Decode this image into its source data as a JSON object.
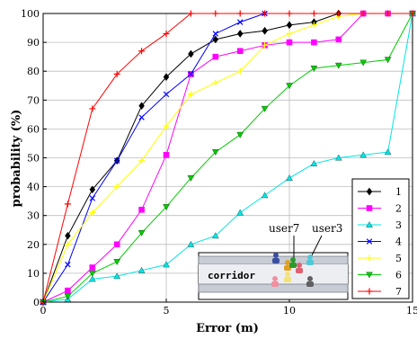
{
  "chart_data": {
    "type": "line",
    "title": "",
    "xlabel": "Error (m)",
    "ylabel": "probability (%)",
    "xlim": [
      0,
      15
    ],
    "ylim": [
      0,
      100
    ],
    "xticks": [
      0,
      5,
      10,
      15
    ],
    "yticks": [
      0,
      10,
      20,
      30,
      40,
      50,
      60,
      70,
      80,
      90,
      100
    ],
    "grid": true,
    "legend_position": "bottom-right",
    "series": [
      {
        "name": "1",
        "color": "#000000",
        "marker": "diamond",
        "x": [
          0,
          1,
          2,
          3,
          4,
          5,
          6,
          7,
          8,
          9,
          10,
          11,
          12
        ],
        "y": [
          0,
          23,
          39,
          49,
          68,
          78,
          86,
          91,
          93,
          94,
          96,
          97,
          100
        ]
      },
      {
        "name": "2",
        "color": "#ff00ff",
        "marker": "square",
        "x": [
          0,
          1,
          2,
          3,
          4,
          5,
          6,
          7,
          8,
          9,
          10,
          11,
          12,
          13,
          14,
          15
        ],
        "y": [
          0,
          4,
          12,
          20,
          32,
          51,
          79,
          85,
          87,
          89,
          90,
          90,
          91,
          100,
          100,
          100
        ]
      },
      {
        "name": "3",
        "color": "#00e5e5",
        "marker": "triangle",
        "x": [
          0,
          1,
          2,
          3,
          4,
          5,
          6,
          7,
          8,
          9,
          10,
          11,
          12,
          13,
          14,
          15
        ],
        "y": [
          0,
          1,
          8,
          9,
          11,
          13,
          20,
          23,
          31,
          37,
          43,
          48,
          50,
          51,
          52,
          100
        ]
      },
      {
        "name": "4",
        "color": "#0000ff",
        "marker": "x",
        "x": [
          0,
          1,
          2,
          3,
          4,
          5,
          6,
          7,
          8,
          9
        ],
        "y": [
          0,
          13,
          36,
          49,
          64,
          72,
          79,
          93,
          97,
          100
        ]
      },
      {
        "name": "5",
        "color": "#ffff00",
        "marker": "plus",
        "x": [
          0,
          1,
          2,
          3,
          4,
          5,
          6,
          7,
          8,
          9,
          10,
          11,
          12,
          13,
          14,
          15
        ],
        "y": [
          0,
          20,
          31,
          40,
          49,
          61,
          72,
          76,
          80,
          89,
          93,
          96,
          99,
          100,
          100,
          100
        ]
      },
      {
        "name": "6",
        "color": "#00cc00",
        "marker": "triangle-down",
        "x": [
          0,
          1,
          2,
          3,
          4,
          5,
          6,
          7,
          8,
          9,
          10,
          11,
          12,
          13,
          14,
          15
        ],
        "y": [
          0,
          2,
          10,
          14,
          24,
          33,
          43,
          52,
          58,
          67,
          75,
          81,
          82,
          83,
          84,
          100
        ]
      },
      {
        "name": "7",
        "color": "#ff0000",
        "marker": "plus",
        "x": [
          0,
          1,
          2,
          3,
          4,
          5,
          6,
          7,
          8,
          9,
          10,
          11,
          12,
          13,
          14,
          15
        ],
        "y": [
          0,
          34,
          67,
          79,
          87,
          93,
          100,
          100,
          100,
          100,
          100,
          100,
          100,
          100,
          100,
          100
        ]
      }
    ],
    "inset": {
      "labels": [
        "user7",
        "user3",
        "corridor"
      ]
    }
  }
}
